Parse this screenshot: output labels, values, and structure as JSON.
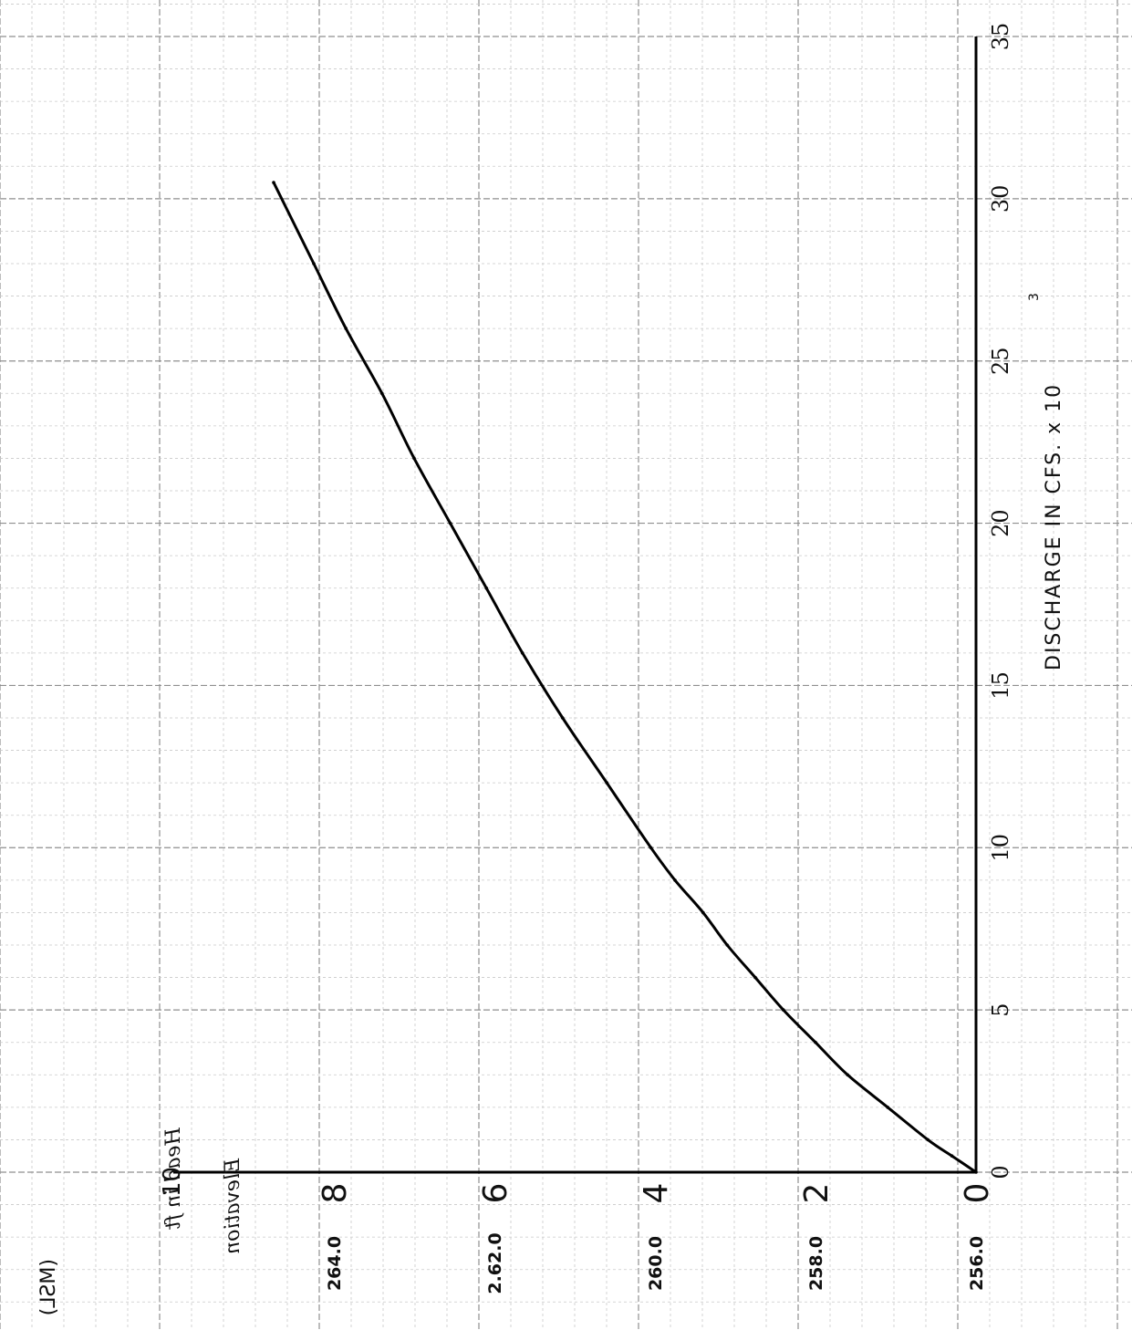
{
  "chart_data": {
    "type": "line",
    "orientation": "rotated-90-counterclockwise",
    "xlabel": "DISCHARGE IN CFS. x 10",
    "xlabel_exponent": "3",
    "x_ticks": [
      "0",
      "5",
      "10",
      "15",
      "20",
      "25",
      "30",
      "35"
    ],
    "xlim": [
      0,
      35
    ],
    "y_head_label": "Head in ft",
    "y_head_top_tick": "10",
    "y_head_ticks": [
      "0",
      "2",
      "4",
      "6",
      "8"
    ],
    "y_elev_label": "Elevation",
    "y_elev_unit": "(MSL)",
    "y_elev_ticks": [
      "256.0",
      "258.0",
      "260.0",
      "2.62.0",
      "264.0"
    ],
    "ylim_head": [
      0,
      10
    ],
    "grid": true,
    "series": [
      {
        "x": [
          0,
          0.5,
          1,
          2,
          3,
          4,
          5,
          6,
          7,
          8,
          9,
          10,
          12,
          14,
          16,
          18,
          20,
          22,
          24,
          26,
          28,
          30.5
        ],
        "y": [
          0,
          0.3,
          0.6,
          1.1,
          1.6,
          2.0,
          2.4,
          2.75,
          3.1,
          3.4,
          3.75,
          4.05,
          4.6,
          5.15,
          5.65,
          6.1,
          6.55,
          7.0,
          7.4,
          7.85,
          8.25,
          8.75
        ]
      }
    ]
  }
}
